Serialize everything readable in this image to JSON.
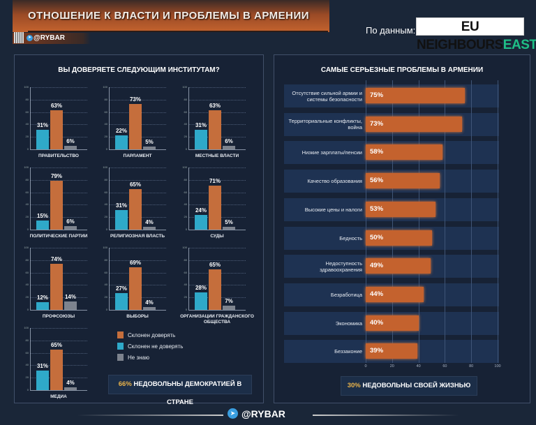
{
  "header": {
    "title": "ОТНОШЕНИЕ К ВЛАСТИ И ПРОБЛЕМЫ В АРМЕНИИ",
    "brand": "@RYBAR",
    "source_label": "По данным:",
    "source_logo_main": "EU NEIGHBOURS",
    "source_logo_accent": "EAST"
  },
  "colors": {
    "trust": "#c56e3c",
    "distrust": "#2fa9c9",
    "unknown": "#7d838e",
    "bar": "#c4622e",
    "accent": "#e9b34a"
  },
  "chart_data": [
    {
      "type": "bar",
      "title": "ВЫ ДОВЕРЯЕТЕ СЛЕДУЮЩИМ ИНСТИТУТАМ?",
      "ylim": [
        0,
        100
      ],
      "yticks": [
        0,
        20,
        40,
        60,
        80,
        100
      ],
      "grid": true,
      "legend_placement": "bottom-right",
      "series_names": [
        "Склонен не доверять",
        "Склонен доверять",
        "Не знаю"
      ],
      "legend": [
        "Склонен доверять",
        "Склонен не доверять",
        "Не знаю"
      ],
      "panels": [
        {
          "category": "ПРАВИТЕЛЬСТВО",
          "values": [
            31,
            63,
            6
          ]
        },
        {
          "category": "ПАРЛАМЕНТ",
          "values": [
            22,
            73,
            5
          ]
        },
        {
          "category": "МЕСТНЫЕ ВЛАСТИ",
          "values": [
            31,
            63,
            6
          ]
        },
        {
          "category": "ПОЛИТИЧЕСКИЕ ПАРТИИ",
          "values": [
            15,
            79,
            6
          ]
        },
        {
          "category": "РЕЛИГИОЗНАЯ ВЛАСТЬ",
          "values": [
            31,
            65,
            4
          ]
        },
        {
          "category": "СУДЫ",
          "values": [
            24,
            71,
            5
          ]
        },
        {
          "category": "ПРОФСОЮЗЫ",
          "values": [
            12,
            74,
            14
          ]
        },
        {
          "category": "ВЫБОРЫ",
          "values": [
            27,
            69,
            4
          ]
        },
        {
          "category": "ОРГАНИЗАЦИИ ГРАЖДАНСКОГО ОБЩЕСТВА",
          "values": [
            28,
            65,
            7
          ]
        },
        {
          "category": "МЕДИА",
          "values": [
            31,
            65,
            4
          ]
        }
      ]
    },
    {
      "type": "bar",
      "orientation": "horizontal",
      "title": "САМЫЕ СЕРЬЕЗНЫЕ ПРОБЛЕМЫ В АРМЕНИИ",
      "xlim": [
        0,
        100
      ],
      "xticks": [
        0,
        20,
        40,
        60,
        80,
        100
      ],
      "grid": true,
      "categories": [
        "Отсутствие сильной армии и системы безопасности",
        "Территориальные конфликты, война",
        "Низкие зарплаты/пенсии",
        "Качество образования",
        "Высокие цены и налоги",
        "Бедность",
        "Недоступность здравоохранения",
        "Безработица",
        "Экономика",
        "Беззаконие"
      ],
      "values": [
        75,
        73,
        58,
        56,
        53,
        50,
        49,
        44,
        40,
        39
      ]
    }
  ],
  "callouts": {
    "left": {
      "pct": "66%",
      "text": "НЕДОВОЛЬНЫ ДЕМОКРАТИЕЙ В СТРАНЕ"
    },
    "right": {
      "pct": "30%",
      "text": "НЕДОВОЛЬНЫ СВОЕЙ ЖИЗНЬЮ"
    }
  },
  "footer": {
    "brand": "@RYBAR"
  }
}
